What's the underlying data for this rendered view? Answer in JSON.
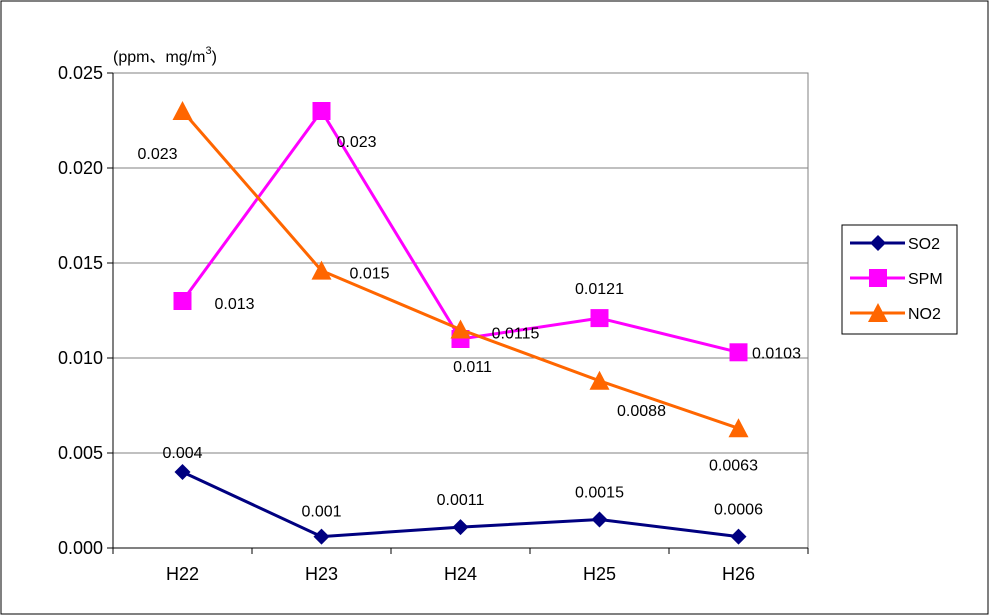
{
  "chart_data": {
    "type": "line",
    "title": "",
    "xlabel": "",
    "ylabel": "",
    "unit_label": "(ppm、mg/m",
    "unit_superscript": "3",
    "unit_close": ")",
    "categories": [
      "H22",
      "H23",
      "H24",
      "H25",
      "H26"
    ],
    "ylim": [
      0,
      0.025
    ],
    "yticks": [
      "0.000",
      "0.005",
      "0.010",
      "0.015",
      "0.020",
      "0.025"
    ],
    "grid": true,
    "legend_position": "right",
    "series": [
      {
        "name": "SO2",
        "color": "#000080",
        "marker": "diamond",
        "values": [
          0.004,
          0.0006,
          0.0011,
          0.0015,
          0.0006
        ],
        "labels": [
          "0.004",
          "0.001",
          "0.0011",
          "0.0015",
          "0.0006"
        ]
      },
      {
        "name": "SPM",
        "color": "#ff00ff",
        "marker": "square",
        "values": [
          0.013,
          0.023,
          0.011,
          0.0121,
          0.0103
        ],
        "labels": [
          "0.013",
          "0.023",
          "0.011",
          "0.0121",
          "0.0103"
        ]
      },
      {
        "name": "NO2",
        "color": "#ff6600",
        "marker": "triangle",
        "values": [
          0.023,
          0.0146,
          0.0115,
          0.0088,
          0.0063
        ],
        "labels": [
          "0.023",
          "0.015",
          "0.0115",
          "0.0088",
          "0.0063"
        ]
      }
    ]
  }
}
